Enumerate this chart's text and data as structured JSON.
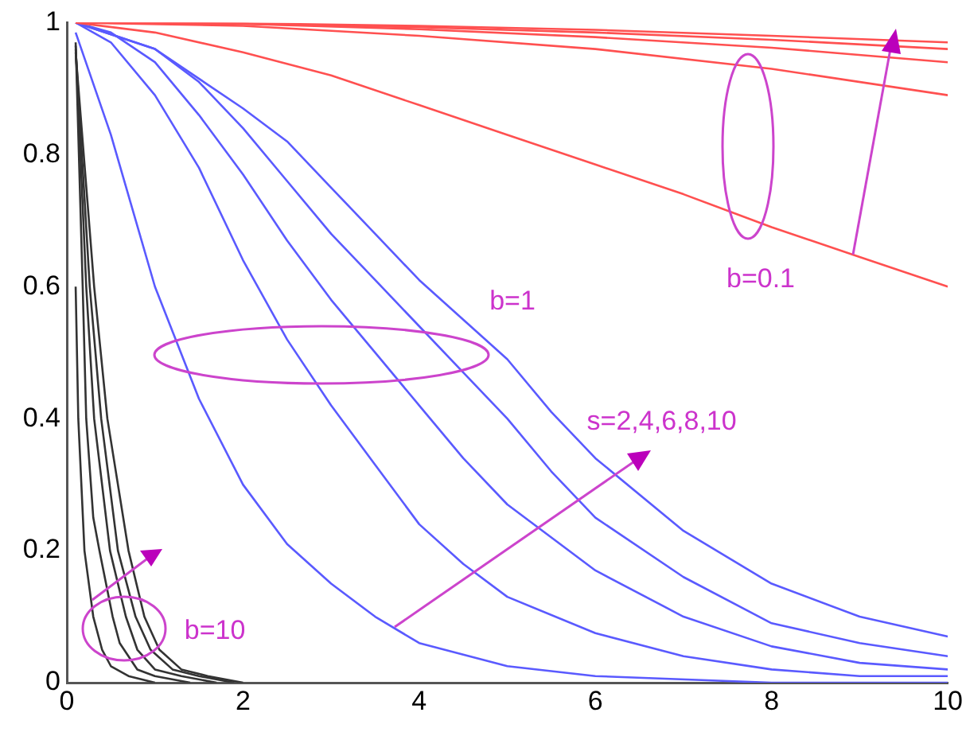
{
  "chart_data": {
    "type": "line",
    "marker": "none",
    "line_style": "solid",
    "grid": false,
    "legend": false,
    "xlim": [
      0,
      10
    ],
    "xticks": [
      0,
      2,
      4,
      6,
      8,
      10
    ],
    "ylim": [
      0,
      1
    ],
    "yticks": [
      0,
      0.2,
      0.4,
      0.6,
      0.8,
      1
    ],
    "annotations": [
      "b=0.1",
      "b=1",
      "b=10",
      {
        "text": "s=2,4,6,8,10",
        "x": 3.7,
        "y": 0.084
      }
    ],
    "series": [
      {
        "color": "#ff5050",
        "x": [
          0.1,
          1,
          2,
          3,
          4,
          5,
          6,
          7,
          8,
          9,
          10
        ],
        "values": [
          1,
          0.985,
          0.955,
          0.92,
          0.875,
          0.83,
          0.785,
          0.74,
          0.69,
          0.645,
          0.6
        ]
      },
      {
        "color": "#ff5050",
        "x": [
          0.1,
          2,
          4,
          6,
          8,
          10
        ],
        "values": [
          1,
          0.995,
          0.98,
          0.96,
          0.93,
          0.89
        ]
      },
      {
        "color": "#ff5050",
        "x": [
          0.1,
          2,
          4,
          6,
          8,
          10
        ],
        "values": [
          1,
          0.998,
          0.99,
          0.978,
          0.962,
          0.94
        ]
      },
      {
        "color": "#ff5050",
        "x": [
          0.1,
          2,
          4,
          6,
          8,
          10
        ],
        "values": [
          1,
          0.998,
          0.993,
          0.985,
          0.974,
          0.96
        ]
      },
      {
        "color": "#ff5050",
        "x": [
          0.1,
          2,
          4,
          6,
          8,
          10
        ],
        "values": [
          1,
          0.999,
          0.995,
          0.989,
          0.98,
          0.97
        ]
      },
      {
        "color": "#5a5aff",
        "x": [
          0.1,
          0.5,
          1,
          1.5,
          2,
          2.5,
          3,
          3.5,
          4,
          5,
          6,
          8,
          10
        ],
        "values": [
          0.985,
          0.83,
          0.6,
          0.43,
          0.3,
          0.21,
          0.15,
          0.1,
          0.06,
          0.025,
          0.01,
          0,
          0
        ]
      },
      {
        "color": "#5a5aff",
        "x": [
          0.1,
          0.5,
          1,
          1.5,
          2,
          2.5,
          3,
          3.5,
          4,
          4.5,
          5,
          6,
          7,
          8,
          9,
          10
        ],
        "values": [
          1,
          0.97,
          0.89,
          0.78,
          0.64,
          0.52,
          0.42,
          0.33,
          0.24,
          0.18,
          0.13,
          0.075,
          0.04,
          0.02,
          0.01,
          0.01
        ]
      },
      {
        "color": "#5a5aff",
        "x": [
          0.1,
          0.5,
          1,
          1.5,
          2,
          2.5,
          3,
          3.5,
          4,
          4.5,
          5,
          6,
          7,
          8,
          9,
          10
        ],
        "values": [
          1,
          0.985,
          0.94,
          0.86,
          0.77,
          0.67,
          0.58,
          0.5,
          0.42,
          0.34,
          0.27,
          0.17,
          0.1,
          0.055,
          0.03,
          0.02
        ]
      },
      {
        "color": "#5a5aff",
        "x": [
          0.1,
          1,
          1.5,
          2,
          2.5,
          3,
          3.5,
          4,
          4.5,
          5,
          5.5,
          6,
          7,
          8,
          9,
          10
        ],
        "values": [
          1,
          0.96,
          0.91,
          0.84,
          0.76,
          0.68,
          0.61,
          0.54,
          0.47,
          0.4,
          0.32,
          0.25,
          0.16,
          0.09,
          0.06,
          0.04
        ]
      },
      {
        "color": "#5a5aff",
        "x": [
          0.1,
          1,
          2,
          2.5,
          3,
          3.5,
          4,
          4.5,
          5,
          5.5,
          6,
          7,
          8,
          9,
          10
        ],
        "values": [
          1,
          0.96,
          0.87,
          0.82,
          0.75,
          0.68,
          0.61,
          0.55,
          0.49,
          0.41,
          0.34,
          0.23,
          0.15,
          0.1,
          0.07
        ]
      },
      {
        "color": "#333333",
        "x": [
          0.1,
          0.13,
          0.2,
          0.3,
          0.4,
          0.5,
          0.7,
          1
        ],
        "values": [
          0.6,
          0.4,
          0.2,
          0.1,
          0.05,
          0.025,
          0.01,
          0
        ]
      },
      {
        "color": "#333333",
        "x": [
          0.1,
          0.18,
          0.22,
          0.3,
          0.37,
          0.52,
          0.6,
          0.8,
          1,
          1.4
        ],
        "values": [
          0.97,
          0.6,
          0.4,
          0.25,
          0.2,
          0.1,
          0.06,
          0.02,
          0.01,
          0
        ]
      },
      {
        "color": "#333333",
        "x": [
          0.1,
          0.22,
          0.31,
          0.49,
          0.67,
          0.8,
          1,
          1.3,
          1.7
        ],
        "values": [
          0.965,
          0.6,
          0.4,
          0.2,
          0.1,
          0.05,
          0.02,
          0.01,
          0
        ]
      },
      {
        "color": "#333333",
        "x": [
          0.1,
          0.26,
          0.39,
          0.58,
          0.78,
          0.95,
          1.2,
          1.5,
          1.9
        ],
        "values": [
          0.96,
          0.6,
          0.4,
          0.2,
          0.1,
          0.05,
          0.02,
          0.01,
          0
        ]
      },
      {
        "color": "#333333",
        "x": [
          0.1,
          0.31,
          0.46,
          0.7,
          0.88,
          1.05,
          1.3,
          1.6,
          2
        ],
        "values": [
          0.955,
          0.6,
          0.4,
          0.2,
          0.1,
          0.05,
          0.02,
          0.01,
          0
        ]
      }
    ]
  }
}
